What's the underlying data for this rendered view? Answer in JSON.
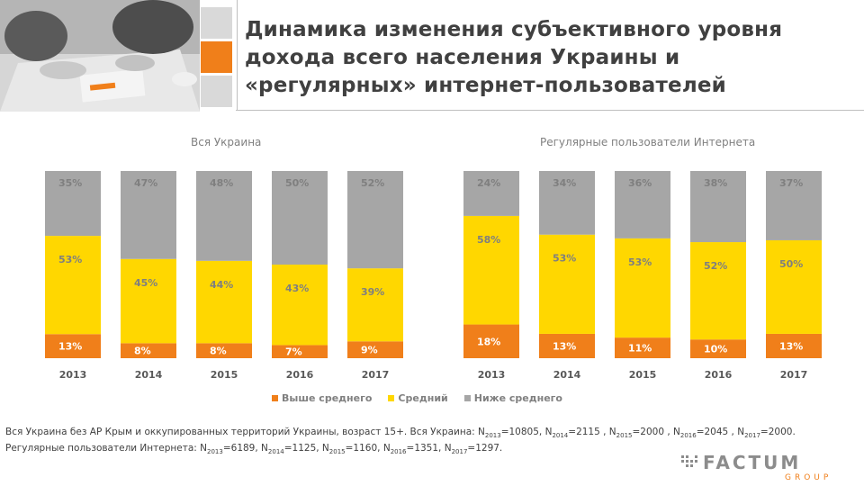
{
  "title": {
    "line1": "Динамика изменения субъективного уровня",
    "line2": "дохода всего населения Украины и",
    "line3": "«регулярных» интернет-пользователей"
  },
  "colors": {
    "above": "#f07f1a",
    "middle": "#ffd700",
    "below": "#a6a6a6",
    "accent": "#f07f1a"
  },
  "legend": [
    {
      "label": "Выше среднего",
      "color": "#f07f1a"
    },
    {
      "label": "Средний",
      "color": "#ffd700"
    },
    {
      "label": "Ниже среднего",
      "color": "#a6a6a6"
    }
  ],
  "chart_data": [
    {
      "type": "bar",
      "stacked": true,
      "title": "Вся Украина",
      "categories": [
        "2013",
        "2014",
        "2015",
        "2016",
        "2017"
      ],
      "series": [
        {
          "name": "Выше среднего",
          "values": [
            13,
            8,
            8,
            7,
            9
          ],
          "labels": [
            "13%",
            "8%",
            "8%",
            "7%",
            "9%"
          ]
        },
        {
          "name": "Средний",
          "values": [
            53,
            45,
            44,
            43,
            39
          ],
          "labels": [
            "53%",
            "45%",
            "44%",
            "43%",
            "39%"
          ]
        },
        {
          "name": "Ниже среднего",
          "values": [
            35,
            47,
            48,
            50,
            52
          ],
          "labels": [
            "35%",
            "47%",
            "48%",
            "50%",
            "52%"
          ]
        }
      ],
      "ylim": [
        0,
        100
      ]
    },
    {
      "type": "bar",
      "stacked": true,
      "title": "Регулярные пользователи Интернета",
      "categories": [
        "2013",
        "2014",
        "2015",
        "2016",
        "2017"
      ],
      "series": [
        {
          "name": "Выше среднего",
          "values": [
            18,
            13,
            11,
            10,
            13
          ],
          "labels": [
            "18%",
            "13%",
            "11%",
            "10%",
            "13%"
          ]
        },
        {
          "name": "Средний",
          "values": [
            58,
            53,
            53,
            52,
            50
          ],
          "labels": [
            "58%",
            "53%",
            "53%",
            "52%",
            "50%"
          ]
        },
        {
          "name": "Ниже среднего",
          "values": [
            24,
            34,
            36,
            38,
            37
          ],
          "labels": [
            "24%",
            "34%",
            "36%",
            "38%",
            "37%"
          ]
        }
      ],
      "ylim": [
        0,
        100
      ]
    }
  ],
  "footnote": {
    "line1_intro": "Вся Украина без АР Крым и оккупированных территорий Украины, возраст 15+. Вся Украина: N",
    "n2013a_sub": "2013",
    "n2013a_val": "=10805, N",
    "n2014a_sub": "2014",
    "n2014a_val": "=2115 , N",
    "n2015a_sub": "2015",
    "n2015a_val": "=2000 , N",
    "n2016a_sub": "2016",
    "n2016a_val": "=2045 , N",
    "n2017a_sub": "2017",
    "n2017a_val": "=2000.",
    "line2_intro": "Регулярные пользователи Интернета: N",
    "n2013b_sub": "2013",
    "n2013b_val": "=6189, N",
    "n2014b_sub": "2014",
    "n2014b_val": "=1125, N",
    "n2015b_sub": "2015",
    "n2015b_val": "=1160, N",
    "n2016b_sub": "2016",
    "n2016b_val": "=1351, N",
    "n2017b_sub": "2017",
    "n2017b_val": "=1297."
  },
  "logo": {
    "text": "FACTUM",
    "subtext": "GROUP"
  }
}
